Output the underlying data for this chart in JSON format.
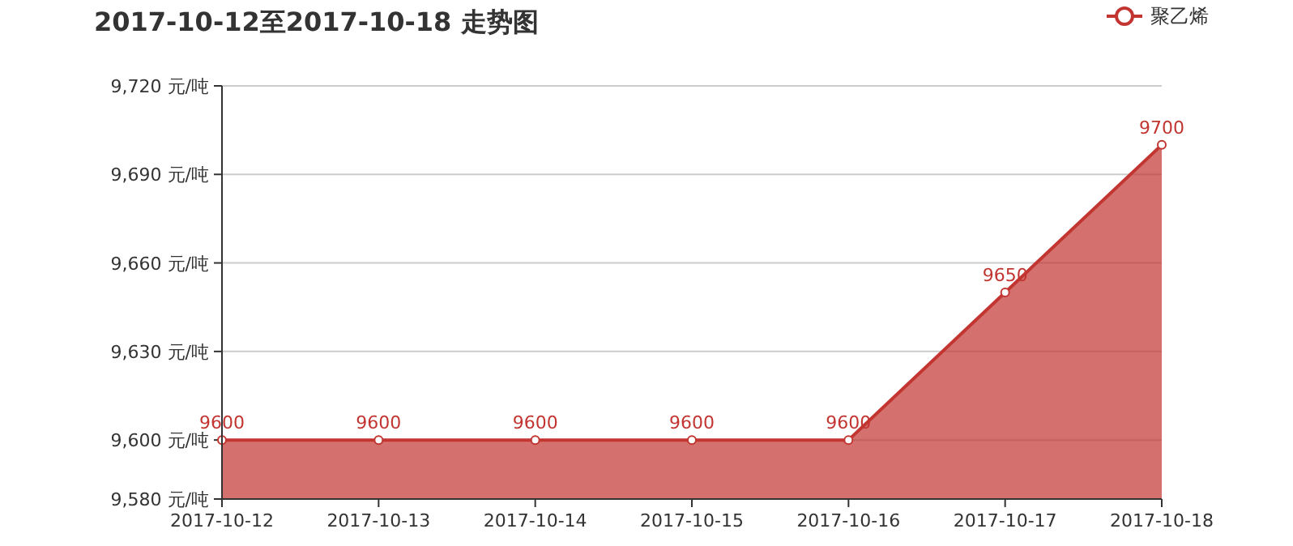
{
  "chart_data": {
    "type": "area",
    "title": "2017-10-12至2017-10-18 走势图",
    "categories": [
      "2017-10-12",
      "2017-10-13",
      "2017-10-14",
      "2017-10-15",
      "2017-10-16",
      "2017-10-17",
      "2017-10-18"
    ],
    "series": [
      {
        "name": "聚乙烯",
        "color": "#c23531",
        "values": [
          9600,
          9600,
          9600,
          9600,
          9600,
          9650,
          9700
        ]
      }
    ],
    "ylim": [
      9580,
      9720
    ],
    "yticks": [
      {
        "value": 9580,
        "label": "9,580 元/吨"
      },
      {
        "value": 9600,
        "label": "9,600 元/吨"
      },
      {
        "value": 9630,
        "label": "9,630 元/吨"
      },
      {
        "value": 9660,
        "label": "9,660 元/吨"
      },
      {
        "value": 9690,
        "label": "9,690 元/吨"
      },
      {
        "value": 9720,
        "label": "9,720 元/吨"
      }
    ],
    "grid": "y",
    "legend": "top right",
    "marker": "circle",
    "data_labels": true
  }
}
